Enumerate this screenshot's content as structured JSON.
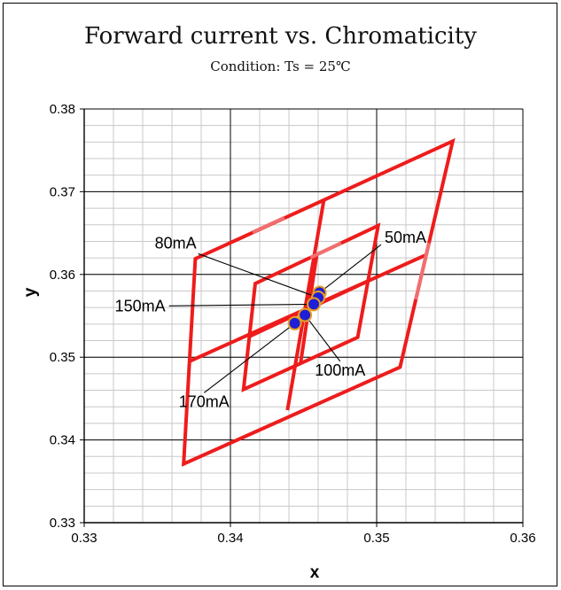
{
  "chart_data": {
    "type": "scatter",
    "title": "Forward current vs. Chromaticity",
    "subtitle": "Condition: Ts = 25℃",
    "xlabel": "x",
    "ylabel": "y",
    "xlim": [
      0.33,
      0.36
    ],
    "ylim": [
      0.33,
      0.38
    ],
    "x_ticks": [
      "0.33",
      "0.34",
      "0.35",
      "0.36"
    ],
    "y_ticks": [
      "0.33",
      "0.34",
      "0.35",
      "0.36",
      "0.37",
      "0.38"
    ],
    "grid": true,
    "minor_grid": true,
    "colors": {
      "region_outline": "#ee1c1c",
      "region_outline_light": "#f07070",
      "marker_fill": "#1f1fd6",
      "marker_edge": "#e8a020"
    },
    "regions": [
      {
        "polygon": [
          [
            0.3368,
            0.3371
          ],
          [
            0.3552,
            0.3761
          ]
        ],
        "style": "outer"
      }
    ],
    "outer_region": {
      "corners": [
        [
          0.3368,
          0.3371
        ],
        [
          0.3376,
          0.3619
        ],
        [
          0.3552,
          0.3761
        ],
        [
          0.3516,
          0.3488
        ]
      ],
      "dividers": [
        [
          [
            0.3372,
            0.3495
          ],
          [
            0.3533,
            0.3623
          ]
        ],
        [
          [
            0.3439,
            0.3436
          ],
          [
            0.3464,
            0.3691
          ]
        ]
      ]
    },
    "inner_region": {
      "corners": [
        [
          0.3409,
          0.3461
        ],
        [
          0.3417,
          0.3589
        ],
        [
          0.3501,
          0.3659
        ],
        [
          0.3487,
          0.3524
        ]
      ],
      "dividers": [
        [
          [
            0.3413,
            0.3525
          ],
          [
            0.3494,
            0.3592
          ]
        ],
        [
          [
            0.3448,
            0.3493
          ],
          [
            0.3459,
            0.3624
          ]
        ]
      ]
    },
    "series": [
      {
        "name": "Forward current",
        "points": [
          {
            "label": "50mA",
            "x": 0.3461,
            "y": 0.3578
          },
          {
            "label": "80mA",
            "x": 0.346,
            "y": 0.3572
          },
          {
            "label": "100mA",
            "x": 0.3457,
            "y": 0.3564
          },
          {
            "label": "150mA",
            "x": 0.3451,
            "y": 0.3551
          },
          {
            "label": "170mA",
            "x": 0.3444,
            "y": 0.3541
          }
        ]
      }
    ],
    "annotations": [
      {
        "text": "50mA",
        "x": 0.3503,
        "y": 0.3636
      },
      {
        "text": "80mA",
        "x": 0.3378,
        "y": 0.3625
      },
      {
        "text": "150mA",
        "x": 0.3358,
        "y": 0.3562
      },
      {
        "text": "100mA",
        "x": 0.3475,
        "y": 0.3495
      },
      {
        "text": "170mA",
        "x": 0.3382,
        "y": 0.3457
      }
    ]
  }
}
